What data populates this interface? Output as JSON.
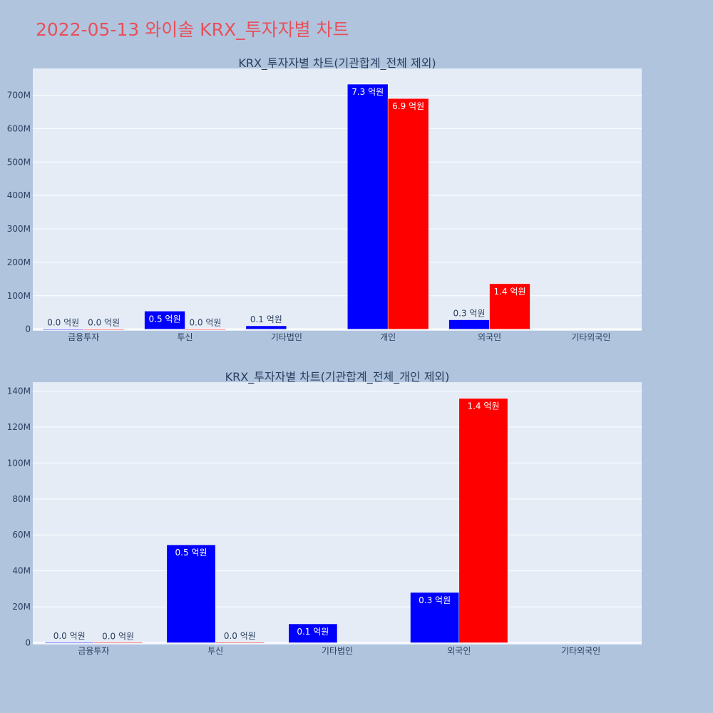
{
  "page": {
    "title": "2022-05-13 와이솔 KRX_투자자별 차트"
  },
  "colors": {
    "background": "#b0c4de",
    "plot_bg": "#e5ecf6",
    "buy": "#0000ff",
    "sell": "#ff0000",
    "title": "#e8505b",
    "text": "#2a3f5f"
  },
  "chart_data": [
    {
      "type": "bar",
      "title": "KRX_투자자별 차트(기관합계_전체 제외)",
      "categories": [
        "금융투자",
        "투신",
        "기타법인",
        "개인",
        "외국인",
        "기타외국인"
      ],
      "series": [
        {
          "color": "#0000ff",
          "values": [
            150000,
            54000000,
            10000000,
            733000000,
            28000000,
            null
          ],
          "labels": [
            "0.0 억원",
            "0.5 억원",
            "0.1 억원",
            "7.3 억원",
            "0.3 억원",
            ""
          ]
        },
        {
          "color": "#ff0000",
          "values": [
            80000,
            200000,
            null,
            690000000,
            136000000,
            null
          ],
          "labels": [
            "0.0 억원",
            "0.0 억원",
            "",
            "6.9 억원",
            "1.4 억원",
            ""
          ]
        }
      ],
      "yticks": [
        "0",
        "100M",
        "200M",
        "300M",
        "400M",
        "500M",
        "600M",
        "700M"
      ],
      "ylim": [
        -5000000,
        780000000
      ],
      "grid": true,
      "legend": "none"
    },
    {
      "type": "bar",
      "title": "KRX_투자자별 차트(기관합계_전체_개인 제외)",
      "categories": [
        "금융투자",
        "투신",
        "기타법인",
        "외국인",
        "기타외국인"
      ],
      "series": [
        {
          "color": "#0000ff",
          "values": [
            150000,
            54500000,
            10500000,
            28000000,
            null
          ],
          "labels": [
            "0.0 억원",
            "0.5 억원",
            "0.1 억원",
            "0.3 억원",
            ""
          ]
        },
        {
          "color": "#ff0000",
          "values": [
            80000,
            200000,
            null,
            136000000,
            null
          ],
          "labels": [
            "0.0 억원",
            "0.0 억원",
            "",
            "1.4 억원",
            ""
          ]
        }
      ],
      "yticks": [
        "0",
        "20M",
        "40M",
        "60M",
        "80M",
        "100M",
        "120M",
        "140M"
      ],
      "ylim": [
        -1000000,
        145000000
      ],
      "grid": true,
      "legend": "none"
    }
  ]
}
